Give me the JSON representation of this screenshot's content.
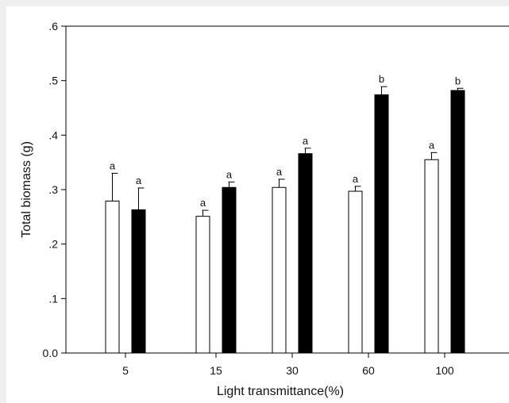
{
  "chart_data": {
    "type": "bar",
    "xlabel": "Light transmittance(%)",
    "ylabel": "Total biomass (g)",
    "ylim": [
      0,
      0.6
    ],
    "yticks": [
      0,
      0.1,
      0.2,
      0.3,
      0.4,
      0.5,
      0.6
    ],
    "ytick_labels": [
      "0.0",
      ".1",
      ".2",
      ".3",
      ".4",
      ".5",
      ".6"
    ],
    "categories": [
      "5",
      "15",
      "30",
      "60",
      "100"
    ],
    "grid": false,
    "legend": "none",
    "series": [
      {
        "fill": "#ffffff",
        "values": [
          0.279,
          0.251,
          0.304,
          0.297,
          0.355
        ],
        "errors": [
          0.051,
          0.011,
          0.015,
          0.009,
          0.013
        ],
        "labels": [
          "a",
          "a",
          "a",
          "a",
          "a"
        ]
      },
      {
        "fill": "#000000",
        "values": [
          0.263,
          0.304,
          0.366,
          0.474,
          0.482
        ],
        "errors": [
          0.04,
          0.01,
          0.01,
          0.015,
          0.004
        ],
        "labels": [
          "a",
          "a",
          "a",
          "b",
          "b"
        ]
      }
    ]
  }
}
